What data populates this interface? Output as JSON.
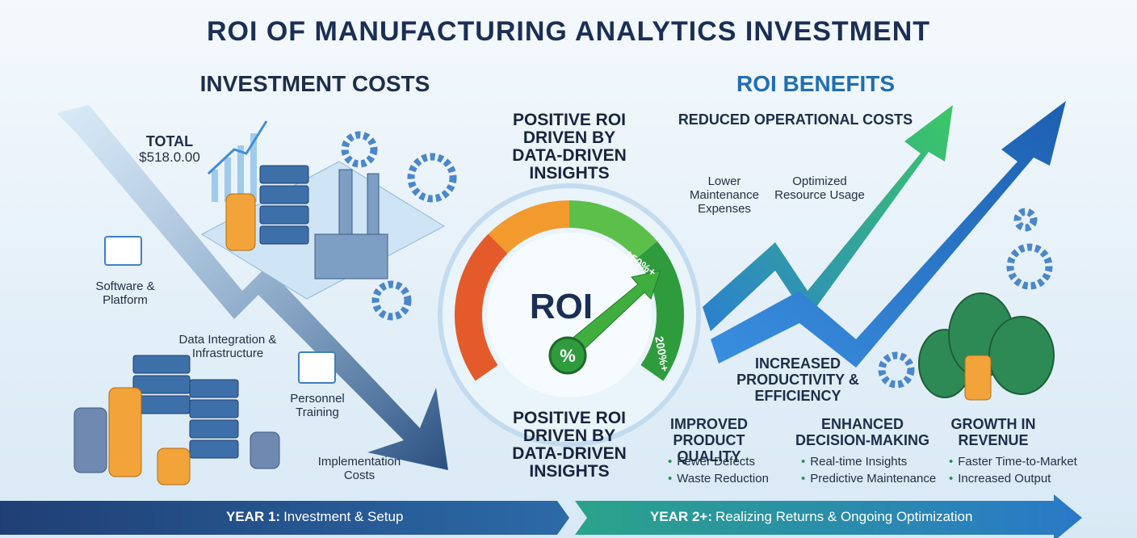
{
  "title": "ROI OF MANUFACTURING ANALYTICS INVESTMENT",
  "costs": {
    "heading": "INVESTMENT COSTS",
    "total_label": "TOTAL",
    "total_value": "$518.0.00",
    "items": [
      "Software & Platform",
      "Data Integration & Infrastructure",
      "Personnel Training",
      "Implementation Costs"
    ]
  },
  "center": {
    "top_text": "POSITIVE ROI DRIVEN BY DATA-DRIVEN INSIGHTS",
    "bottom_text": "POSITIVE ROI DRIVEN BY DATA-DRIVEN INSIGHTS",
    "gauge_label": "ROI",
    "needle_label": "%",
    "marks": [
      "150%+",
      "200%+"
    ]
  },
  "benefits": {
    "heading": "ROI BENEFITS",
    "reduced": "REDUCED OPERATIONAL COSTS",
    "reduced_items": [
      "Lower Maintenance Expenses",
      "Optimized Resource Usage"
    ],
    "productivity": "INCREASED PRODUCTIVITY & EFFICIENCY",
    "groups": [
      {
        "title": "IMPROVED PRODUCT QUALITY",
        "items": [
          "Fewer Defects",
          "Waste Reduction"
        ]
      },
      {
        "title": "ENHANCED DECISION-MAKING",
        "items": [
          "Real-time Insights",
          "Predictive Maintenance"
        ]
      },
      {
        "title": "GROWTH IN REVENUE",
        "items": [
          "Faster Time-to-Market",
          "Increased Output"
        ]
      }
    ]
  },
  "timeline": [
    {
      "label": "YEAR 1:",
      "text": "Investment & Setup"
    },
    {
      "label": "YEAR 2+:",
      "text": "Realizing Returns & Ongoing Optimization"
    }
  ]
}
